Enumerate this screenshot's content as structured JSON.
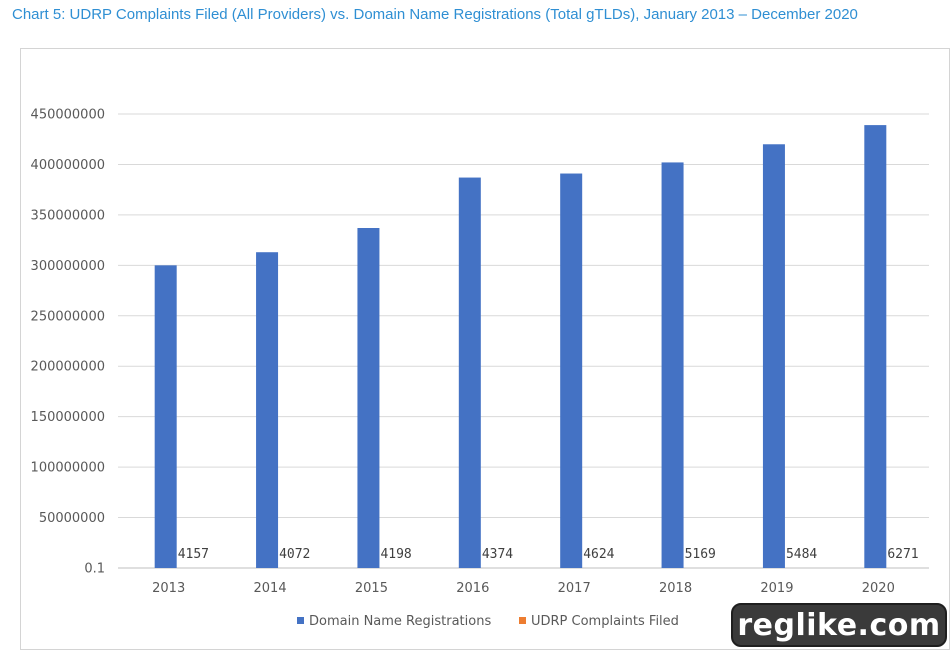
{
  "title": "Chart 5: UDRP Complaints Filed (All Providers) vs. Domain Name Registrations (Total gTLDs), January 2013 – December 2020",
  "watermark": "reglike.com",
  "colors": {
    "title": "#2f8fd3",
    "registrations": "#4472c4",
    "complaints": "#ed7d31",
    "grid": "#d9d9d9"
  },
  "chart_data": {
    "type": "bar",
    "categories": [
      "2013",
      "2014",
      "2015",
      "2016",
      "2017",
      "2018",
      "2019",
      "2020"
    ],
    "series": [
      {
        "name": "Domain Name Registrations",
        "values": [
          300000000,
          313000000,
          337000000,
          387000000,
          391000000,
          402000000,
          420000000,
          439000000
        ]
      },
      {
        "name": "UDRP Complaints Filed",
        "values": [
          4157,
          4072,
          4198,
          4374,
          4624,
          5169,
          5484,
          6271
        ],
        "data_labels": [
          "4157",
          "4072",
          "4198",
          "4374",
          "4624",
          "5169",
          "5484",
          "6271"
        ]
      }
    ],
    "ytick_labels": [
      "0.1",
      "50000000",
      "100000000",
      "150000000",
      "200000000",
      "250000000",
      "300000000",
      "350000000",
      "400000000",
      "450000000"
    ],
    "ylim": [
      0,
      450000000
    ],
    "grid": true,
    "legend_position": "bottom"
  }
}
